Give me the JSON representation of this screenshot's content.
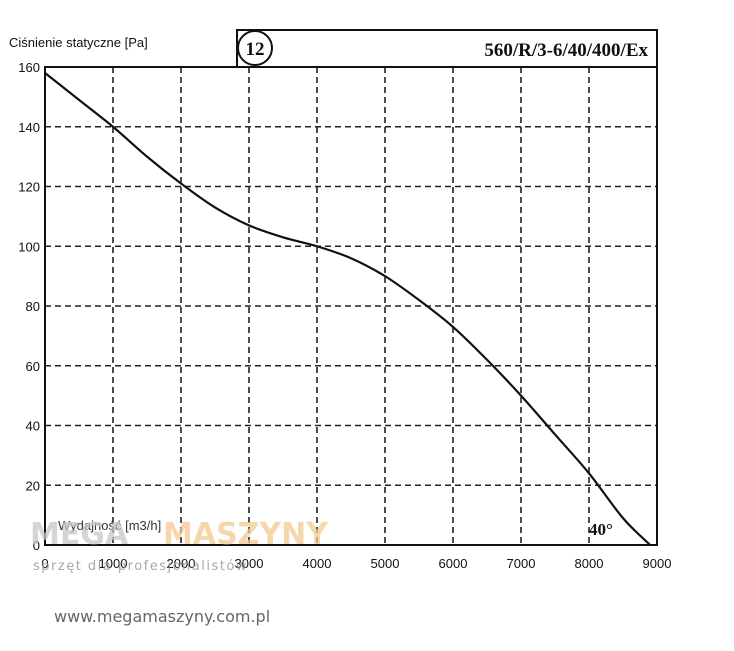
{
  "chart_data": {
    "type": "line",
    "curve_code": "12",
    "model": "560/R/3-6/40/400/Ex",
    "blade_angle": "40°",
    "ylabel": "Ciśnienie statyczne [Pa]",
    "xlabel": "Wydajność [m3/h]",
    "xlim": [
      0,
      9000
    ],
    "ylim": [
      0,
      160
    ],
    "x_ticks": [
      0,
      1000,
      2000,
      3000,
      4000,
      5000,
      6000,
      7000,
      8000,
      9000
    ],
    "x_tick_labels": [
      "0",
      "1000",
      "2000",
      "3000",
      "4000",
      "5000",
      "6000",
      "7000",
      "8000",
      "9000"
    ],
    "y_ticks": [
      0,
      20,
      40,
      60,
      80,
      100,
      120,
      140,
      160
    ],
    "y_tick_labels": [
      "0",
      "20",
      "40",
      "60",
      "80",
      "100",
      "120",
      "140",
      "160"
    ],
    "grid": true,
    "series": [
      {
        "x": [
          0,
          500,
          1000,
          1500,
          2000,
          2500,
          3000,
          3500,
          4000,
          4500,
          5000,
          5500,
          6000,
          6500,
          7000,
          7500,
          8000,
          8500,
          8900
        ],
        "y": [
          158,
          149,
          140,
          130,
          121,
          113,
          107,
          103,
          100,
          96,
          90,
          82,
          73,
          62,
          50,
          37,
          24,
          9,
          0
        ]
      }
    ]
  },
  "watermark": {
    "brand_left": "MEGA",
    "brand_right": "MASZYNY",
    "tagline": "sprzęt dla profesjonalistów",
    "url": "www.megamaszyny.com.pl"
  }
}
